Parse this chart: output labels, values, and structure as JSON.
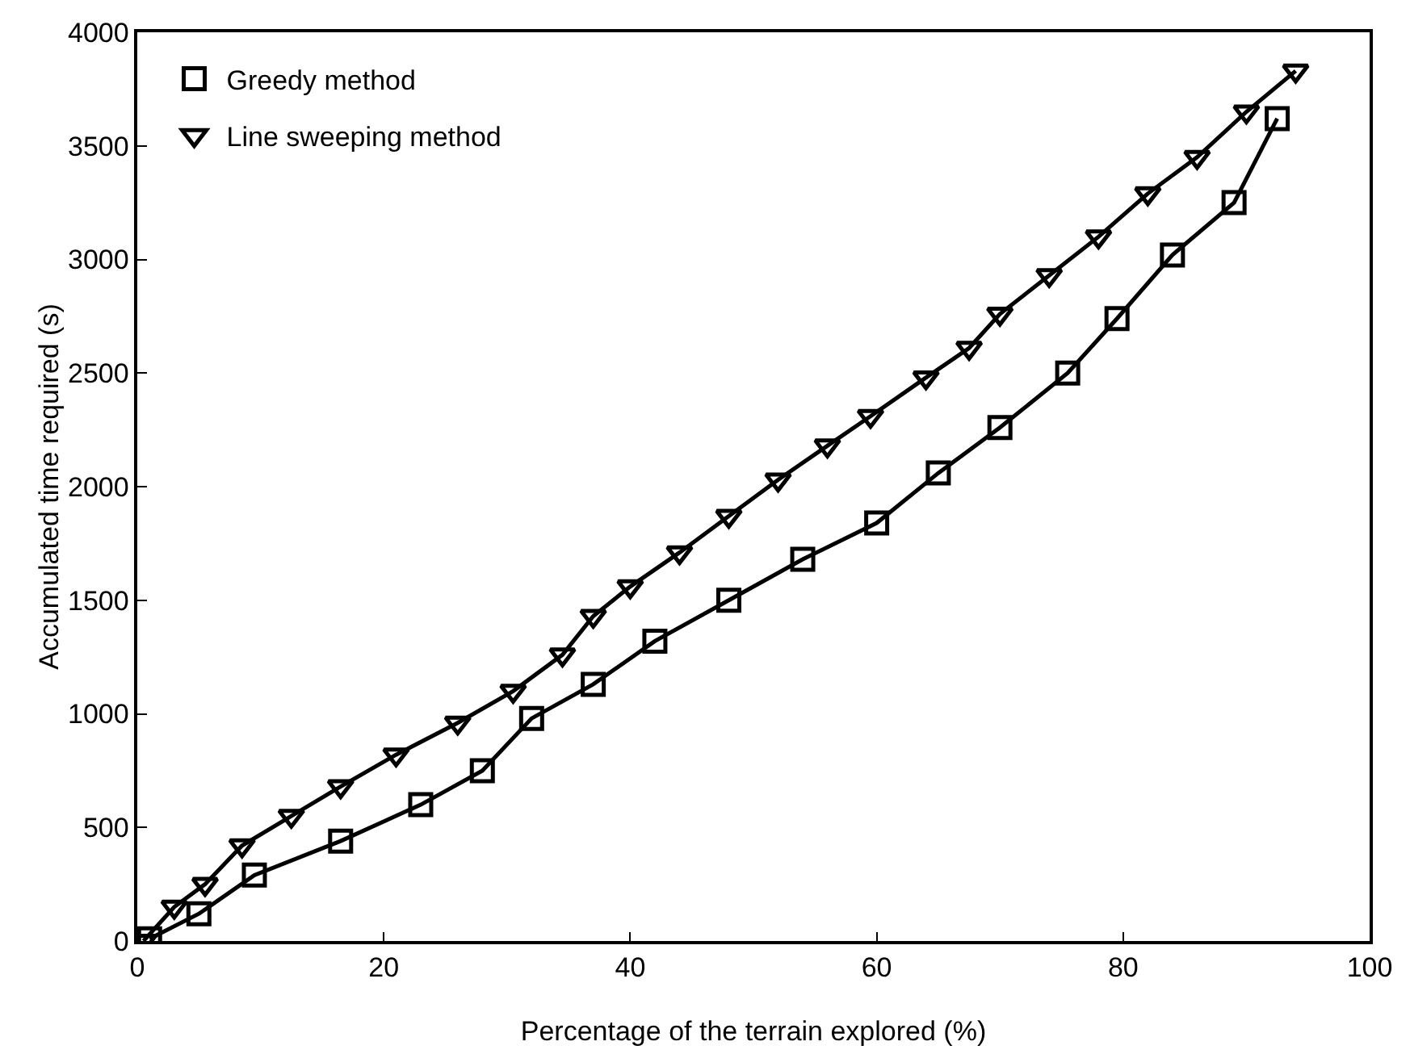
{
  "chart_data": {
    "type": "line",
    "xlabel": "Percentage of the terrain explored (%)",
    "ylabel": "Accumulated time required (s)",
    "xlim": [
      0,
      100
    ],
    "xticks": [
      0,
      20,
      40,
      60,
      80,
      100
    ],
    "ylim": [
      0,
      4000
    ],
    "yticks": [
      0,
      500,
      1000,
      1500,
      2000,
      2500,
      3000,
      3500,
      4000
    ],
    "grid": false,
    "legend": "top left",
    "line_style": "solid",
    "series": [
      {
        "name": "Greedy method",
        "color": "#000000",
        "marker": "square",
        "x": [
          1,
          5,
          9.5,
          16.5,
          23,
          28,
          32,
          37,
          42,
          48,
          54,
          60,
          65,
          70,
          75.5,
          79.5,
          84,
          89,
          92.5
        ],
        "values": [
          10,
          120,
          290,
          440,
          600,
          750,
          980,
          1130,
          1320,
          1500,
          1680,
          1840,
          2060,
          2260,
          2500,
          2740,
          3020,
          3250,
          3620
        ]
      },
      {
        "name": "Line sweeping method",
        "color": "#000000",
        "marker": "triangle",
        "x": [
          0.5,
          3,
          5.5,
          8.5,
          12.5,
          16.5,
          21,
          26,
          30.5,
          34.5,
          37,
          40,
          44,
          48,
          52,
          56,
          59.5,
          64,
          67.5,
          70,
          74,
          78,
          82,
          86,
          90,
          94
        ],
        "values": [
          0,
          150,
          250,
          420,
          550,
          680,
          820,
          960,
          1100,
          1260,
          1430,
          1560,
          1710,
          1870,
          2030,
          2180,
          2310,
          2480,
          2610,
          2760,
          2930,
          3100,
          3290,
          3450,
          3650,
          3830
        ]
      }
    ]
  }
}
